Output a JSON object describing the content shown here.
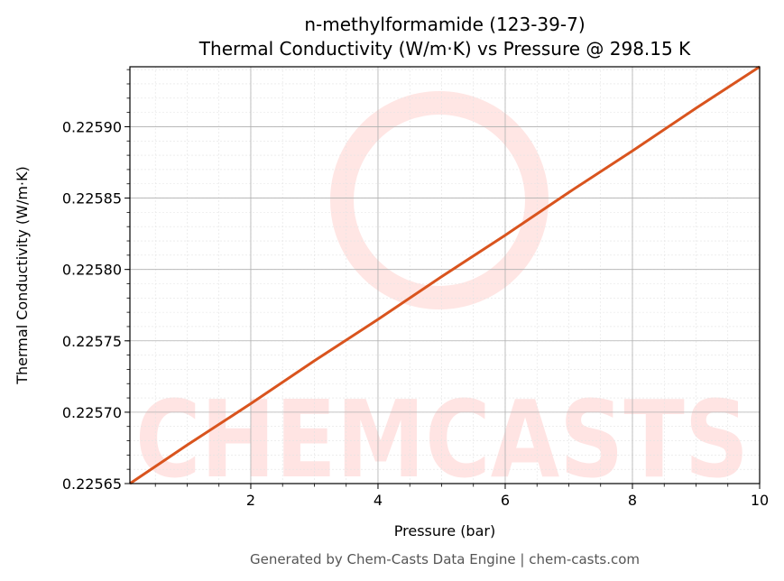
{
  "chart_data": {
    "type": "line",
    "title": "n-methylformamide (123-39-7)",
    "subtitle": "Thermal Conductivity (W/m·K) vs Pressure @ 298.15 K",
    "xlabel": "Pressure (bar)",
    "ylabel": "Thermal Conductivity (W/m·K)",
    "xlim": [
      0.1,
      10
    ],
    "ylim": [
      0.22565,
      0.225942
    ],
    "x_ticks": [
      2,
      4,
      6,
      8,
      10
    ],
    "x_tick_labels": [
      "2",
      "4",
      "6",
      "8",
      "10"
    ],
    "y_ticks": [
      0.22565,
      0.2257,
      0.22575,
      0.2258,
      0.22585,
      0.2259
    ],
    "y_tick_labels": [
      "0.22565",
      "0.22570",
      "0.22575",
      "0.22580",
      "0.22585",
      "0.22590"
    ],
    "grid": true,
    "legend": null,
    "series": [
      {
        "name": "Thermal Conductivity",
        "color": "#d9541e",
        "x": [
          0.1,
          1,
          2,
          3,
          4,
          5,
          6,
          7,
          8,
          9,
          10
        ],
        "y": [
          0.22565,
          0.225677,
          0.225706,
          0.225736,
          0.225765,
          0.225795,
          0.225824,
          0.225854,
          0.225883,
          0.225913,
          0.225942
        ]
      }
    ],
    "watermark": "CHEMCASTS",
    "footer": "Generated by Chem-Casts Data Engine | chem-casts.com"
  }
}
